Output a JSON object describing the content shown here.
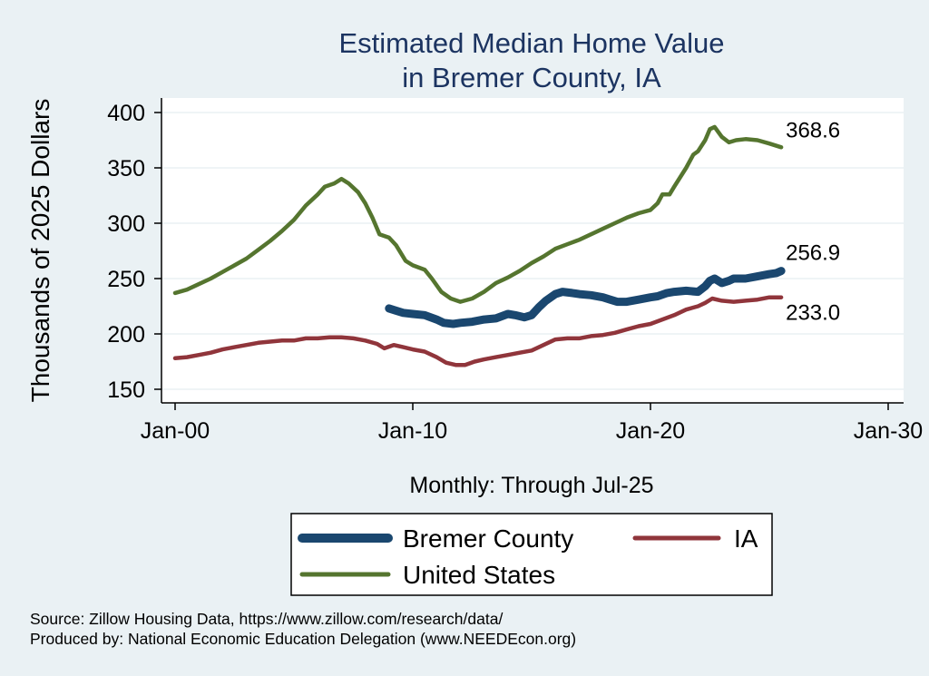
{
  "chart_data": {
    "type": "line",
    "title": [
      "Estimated Median Home Value",
      "in Bremer County, IA"
    ],
    "ylabel": "Thousands of 2025 Dollars",
    "xlabel": "Monthly: Through Jul-25",
    "ylim": [
      140,
      410
    ],
    "xlim": [
      2000,
      2030
    ],
    "yticks": [
      "150",
      "200",
      "250",
      "300",
      "350",
      "400"
    ],
    "ytick_values": [
      150,
      200,
      250,
      300,
      350,
      400
    ],
    "xticks": [
      "Jan-00",
      "Jan-10",
      "Jan-20",
      "Jan-30"
    ],
    "xtick_values": [
      2000,
      2010,
      2020,
      2030
    ],
    "grid": true,
    "legend_position": "bottom",
    "series": [
      {
        "name": "Bremer County",
        "color": "#1a476f",
        "end_label": "256.9",
        "points": [
          [
            2009.0,
            223
          ],
          [
            2009.3,
            221
          ],
          [
            2009.6,
            219
          ],
          [
            2010.0,
            218
          ],
          [
            2010.5,
            217
          ],
          [
            2011.0,
            213
          ],
          [
            2011.3,
            210
          ],
          [
            2011.7,
            209
          ],
          [
            2012.0,
            210
          ],
          [
            2012.5,
            211
          ],
          [
            2013.0,
            213
          ],
          [
            2013.5,
            214
          ],
          [
            2014.0,
            218
          ],
          [
            2014.3,
            217
          ],
          [
            2014.7,
            215
          ],
          [
            2015.0,
            217
          ],
          [
            2015.3,
            224
          ],
          [
            2015.6,
            230
          ],
          [
            2016.0,
            236
          ],
          [
            2016.3,
            238
          ],
          [
            2016.7,
            237
          ],
          [
            2017.0,
            236
          ],
          [
            2017.5,
            235
          ],
          [
            2018.0,
            233
          ],
          [
            2018.3,
            231
          ],
          [
            2018.6,
            229
          ],
          [
            2019.0,
            229
          ],
          [
            2019.5,
            231
          ],
          [
            2020.0,
            233
          ],
          [
            2020.3,
            234
          ],
          [
            2020.7,
            237
          ],
          [
            2021.0,
            238
          ],
          [
            2021.5,
            239
          ],
          [
            2022.0,
            238
          ],
          [
            2022.3,
            243
          ],
          [
            2022.5,
            248
          ],
          [
            2022.7,
            250
          ],
          [
            2023.0,
            246
          ],
          [
            2023.3,
            248
          ],
          [
            2023.5,
            250
          ],
          [
            2024.0,
            250
          ],
          [
            2024.5,
            252
          ],
          [
            2025.0,
            254
          ],
          [
            2025.3,
            255
          ],
          [
            2025.5,
            256.9
          ]
        ]
      },
      {
        "name": "IA",
        "color": "#90353b",
        "end_label": "233.0",
        "points": [
          [
            2000.0,
            178
          ],
          [
            2000.5,
            179
          ],
          [
            2001.0,
            181
          ],
          [
            2001.5,
            183
          ],
          [
            2002.0,
            186
          ],
          [
            2002.5,
            188
          ],
          [
            2003.0,
            190
          ],
          [
            2003.5,
            192
          ],
          [
            2004.0,
            193
          ],
          [
            2004.5,
            194
          ],
          [
            2005.0,
            194
          ],
          [
            2005.5,
            196
          ],
          [
            2006.0,
            196
          ],
          [
            2006.5,
            197
          ],
          [
            2007.0,
            197
          ],
          [
            2007.5,
            196
          ],
          [
            2008.0,
            194
          ],
          [
            2008.5,
            191
          ],
          [
            2008.8,
            187
          ],
          [
            2009.2,
            190
          ],
          [
            2009.6,
            188
          ],
          [
            2010.0,
            186
          ],
          [
            2010.5,
            184
          ],
          [
            2011.0,
            179
          ],
          [
            2011.4,
            174
          ],
          [
            2011.8,
            172
          ],
          [
            2012.2,
            172
          ],
          [
            2012.6,
            175
          ],
          [
            2013.0,
            177
          ],
          [
            2013.5,
            179
          ],
          [
            2014.0,
            181
          ],
          [
            2014.5,
            183
          ],
          [
            2015.0,
            185
          ],
          [
            2015.5,
            190
          ],
          [
            2016.0,
            195
          ],
          [
            2016.5,
            196
          ],
          [
            2017.0,
            196
          ],
          [
            2017.5,
            198
          ],
          [
            2018.0,
            199
          ],
          [
            2018.5,
            201
          ],
          [
            2019.0,
            204
          ],
          [
            2019.5,
            207
          ],
          [
            2020.0,
            209
          ],
          [
            2020.5,
            213
          ],
          [
            2021.0,
            217
          ],
          [
            2021.5,
            222
          ],
          [
            2022.0,
            225
          ],
          [
            2022.3,
            228
          ],
          [
            2022.6,
            232
          ],
          [
            2023.0,
            230
          ],
          [
            2023.5,
            229
          ],
          [
            2024.0,
            230
          ],
          [
            2024.5,
            231
          ],
          [
            2025.0,
            233
          ],
          [
            2025.5,
            233.0
          ]
        ]
      },
      {
        "name": "United States",
        "color": "#55752f",
        "end_label": "368.6",
        "points": [
          [
            2000.0,
            237
          ],
          [
            2000.5,
            240
          ],
          [
            2001.0,
            245
          ],
          [
            2001.5,
            250
          ],
          [
            2002.0,
            256
          ],
          [
            2002.5,
            262
          ],
          [
            2003.0,
            268
          ],
          [
            2003.5,
            276
          ],
          [
            2004.0,
            284
          ],
          [
            2004.5,
            293
          ],
          [
            2005.0,
            303
          ],
          [
            2005.5,
            316
          ],
          [
            2006.0,
            326
          ],
          [
            2006.3,
            333
          ],
          [
            2006.7,
            336
          ],
          [
            2007.0,
            340
          ],
          [
            2007.3,
            336
          ],
          [
            2007.7,
            328
          ],
          [
            2008.0,
            318
          ],
          [
            2008.3,
            305
          ],
          [
            2008.6,
            290
          ],
          [
            2009.0,
            287
          ],
          [
            2009.3,
            280
          ],
          [
            2009.7,
            266
          ],
          [
            2010.0,
            262
          ],
          [
            2010.5,
            258
          ],
          [
            2010.8,
            250
          ],
          [
            2011.2,
            238
          ],
          [
            2011.6,
            232
          ],
          [
            2012.0,
            229
          ],
          [
            2012.5,
            232
          ],
          [
            2013.0,
            238
          ],
          [
            2013.5,
            246
          ],
          [
            2014.0,
            251
          ],
          [
            2014.5,
            257
          ],
          [
            2015.0,
            264
          ],
          [
            2015.5,
            270
          ],
          [
            2016.0,
            277
          ],
          [
            2016.5,
            281
          ],
          [
            2017.0,
            285
          ],
          [
            2017.5,
            290
          ],
          [
            2018.0,
            295
          ],
          [
            2018.5,
            300
          ],
          [
            2019.0,
            305
          ],
          [
            2019.5,
            309
          ],
          [
            2020.0,
            312
          ],
          [
            2020.3,
            318
          ],
          [
            2020.5,
            326
          ],
          [
            2020.8,
            326
          ],
          [
            2021.0,
            333
          ],
          [
            2021.5,
            350
          ],
          [
            2021.8,
            362
          ],
          [
            2022.0,
            365
          ],
          [
            2022.3,
            375
          ],
          [
            2022.5,
            385
          ],
          [
            2022.7,
            387
          ],
          [
            2023.0,
            378
          ],
          [
            2023.3,
            373
          ],
          [
            2023.6,
            375
          ],
          [
            2024.0,
            376
          ],
          [
            2024.5,
            375
          ],
          [
            2025.0,
            372
          ],
          [
            2025.5,
            368.6
          ]
        ]
      }
    ]
  },
  "footer": {
    "source": "Source: Zillow Housing Data, https://www.zillow.com/research/data/",
    "produced": "Produced by: National Economic Education Delegation (www.NEEDEcon.org)"
  }
}
